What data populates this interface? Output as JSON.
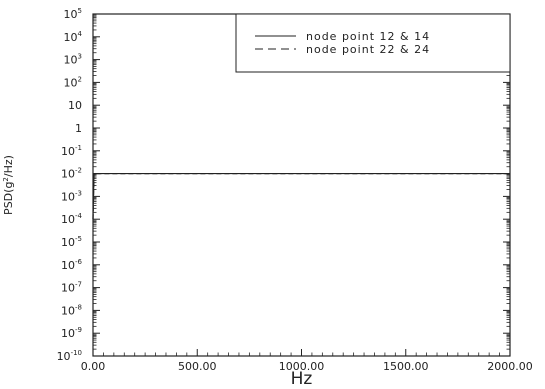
{
  "chart_data": {
    "type": "line",
    "xlabel": "Hz",
    "ylabel": "PSD(g²/Hz)",
    "ylabel_parts": {
      "base": "PSD(g",
      "sup": "2",
      "tail": "/Hz)"
    },
    "xlim": [
      0,
      2000
    ],
    "ylim": [
      1e-10,
      100000.0
    ],
    "yscale": "log",
    "x_ticks": [
      {
        "value": 0,
        "label": "0.00"
      },
      {
        "value": 500,
        "label": "500.00"
      },
      {
        "value": 1000,
        "label": "1000.00"
      },
      {
        "value": 1500,
        "label": "1500.00"
      },
      {
        "value": 2000,
        "label": "2000.00"
      }
    ],
    "y_ticks": [
      {
        "exp": 5,
        "base": "10",
        "sup": "5"
      },
      {
        "exp": 4,
        "base": "10",
        "sup": "4"
      },
      {
        "exp": 3,
        "base": "10",
        "sup": "3"
      },
      {
        "exp": 2,
        "base": "10",
        "sup": "2"
      },
      {
        "exp": 1,
        "base": "10",
        "sup": ""
      },
      {
        "exp": 0,
        "base": "1",
        "sup": ""
      },
      {
        "exp": -1,
        "base": "10",
        "sup": "-1"
      },
      {
        "exp": -2,
        "base": "10",
        "sup": "-2"
      },
      {
        "exp": -3,
        "base": "10",
        "sup": "-3"
      },
      {
        "exp": -4,
        "base": "10",
        "sup": "-4"
      },
      {
        "exp": -5,
        "base": "10",
        "sup": "-5"
      },
      {
        "exp": -6,
        "base": "10",
        "sup": "-6"
      },
      {
        "exp": -7,
        "base": "10",
        "sup": "-7"
      },
      {
        "exp": -8,
        "base": "10",
        "sup": "-8"
      },
      {
        "exp": -9,
        "base": "10",
        "sup": "-9"
      },
      {
        "exp": -10,
        "base": "10",
        "sup": "-10"
      }
    ],
    "series": [
      {
        "name": "node point 12 & 14",
        "style": "solid",
        "color": "#222222",
        "x": [
          0,
          5,
          20,
          2000
        ],
        "y": [
          0.0001,
          0.01,
          0.01,
          0.01
        ]
      },
      {
        "name": "node point 22 & 24",
        "style": "dashed",
        "color": "#222222",
        "x": [
          0,
          5,
          20,
          2000
        ],
        "y": [
          0.0001,
          0.01,
          0.01,
          0.01
        ]
      }
    ],
    "legend_position": "top-right",
    "grid": false
  }
}
